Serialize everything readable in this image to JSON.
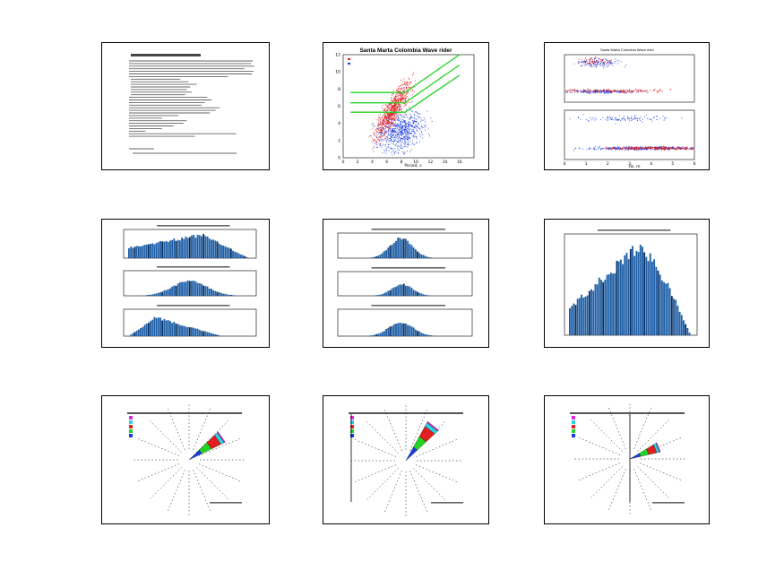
{
  "colors": {
    "bar": "#1f5fa8",
    "bar_dark": "#0b2e5a",
    "red": "#e02020",
    "blue": "#1a3ce0",
    "green": "#22d422",
    "cyan": "#2ad4e0",
    "magenta": "#e028e0"
  },
  "panels": [
    {
      "id": "p1",
      "kind": "document",
      "title": "Santa Marta Colombia - Procedures",
      "text_lines": 30
    },
    {
      "id": "p2",
      "kind": "scatter",
      "title": "Santa Marta Colombia Wave rider"
    },
    {
      "id": "p3",
      "kind": "scatter-stack",
      "title": "Santa Marta Colombia Wave rider"
    },
    {
      "id": "p4",
      "kind": "histogram-3"
    },
    {
      "id": "p5",
      "kind": "histogram-3"
    },
    {
      "id": "p6",
      "kind": "histogram-1"
    },
    {
      "id": "p7",
      "kind": "rose"
    },
    {
      "id": "p8",
      "kind": "rose"
    },
    {
      "id": "p9",
      "kind": "rose"
    }
  ],
  "chart_data": [
    {
      "type": "scatter",
      "title": "Santa Marta Colombia Wave rider",
      "xlabel": "Period, s",
      "ylabel": "",
      "xlim": [
        0,
        18
      ],
      "ylim": [
        0,
        12
      ],
      "x_ticks": [
        "0",
        "2",
        "4",
        "6",
        "8",
        "10",
        "12",
        "14",
        "16"
      ],
      "y_ticks": [
        "0",
        "2",
        "4",
        "6",
        "8",
        "10",
        "12"
      ],
      "series": [
        {
          "name": "",
          "color": "#e02020"
        },
        {
          "name": "",
          "color": "#1a3ce0"
        }
      ],
      "lines": [
        {
          "color": "#22d422",
          "points": [
            [
              1,
              7.6
            ],
            [
              8.5,
              7.6
            ],
            [
              16,
              12.0
            ]
          ]
        },
        {
          "color": "#22d422",
          "points": [
            [
              1,
              6.4
            ],
            [
              8.5,
              6.4
            ],
            [
              16,
              10.8
            ]
          ]
        },
        {
          "color": "#22d422",
          "points": [
            [
              1,
              5.3
            ],
            [
              8.5,
              5.3
            ],
            [
              16,
              9.6
            ]
          ]
        }
      ]
    },
    {
      "type": "scatter",
      "title": "Santa Marta Colombia Wave rider",
      "xlabel": "Hs, m",
      "x_ticks": [
        "0",
        "1",
        "2",
        "3",
        "4",
        "5",
        "6"
      ]
    },
    {
      "type": "bar",
      "subplots": 3
    },
    {
      "type": "bar",
      "subplots": 3
    },
    {
      "type": "bar",
      "subplots": 1
    },
    {
      "type": "pie",
      "style": "rose"
    },
    {
      "type": "pie",
      "style": "rose"
    },
    {
      "type": "pie",
      "style": "rose"
    }
  ]
}
